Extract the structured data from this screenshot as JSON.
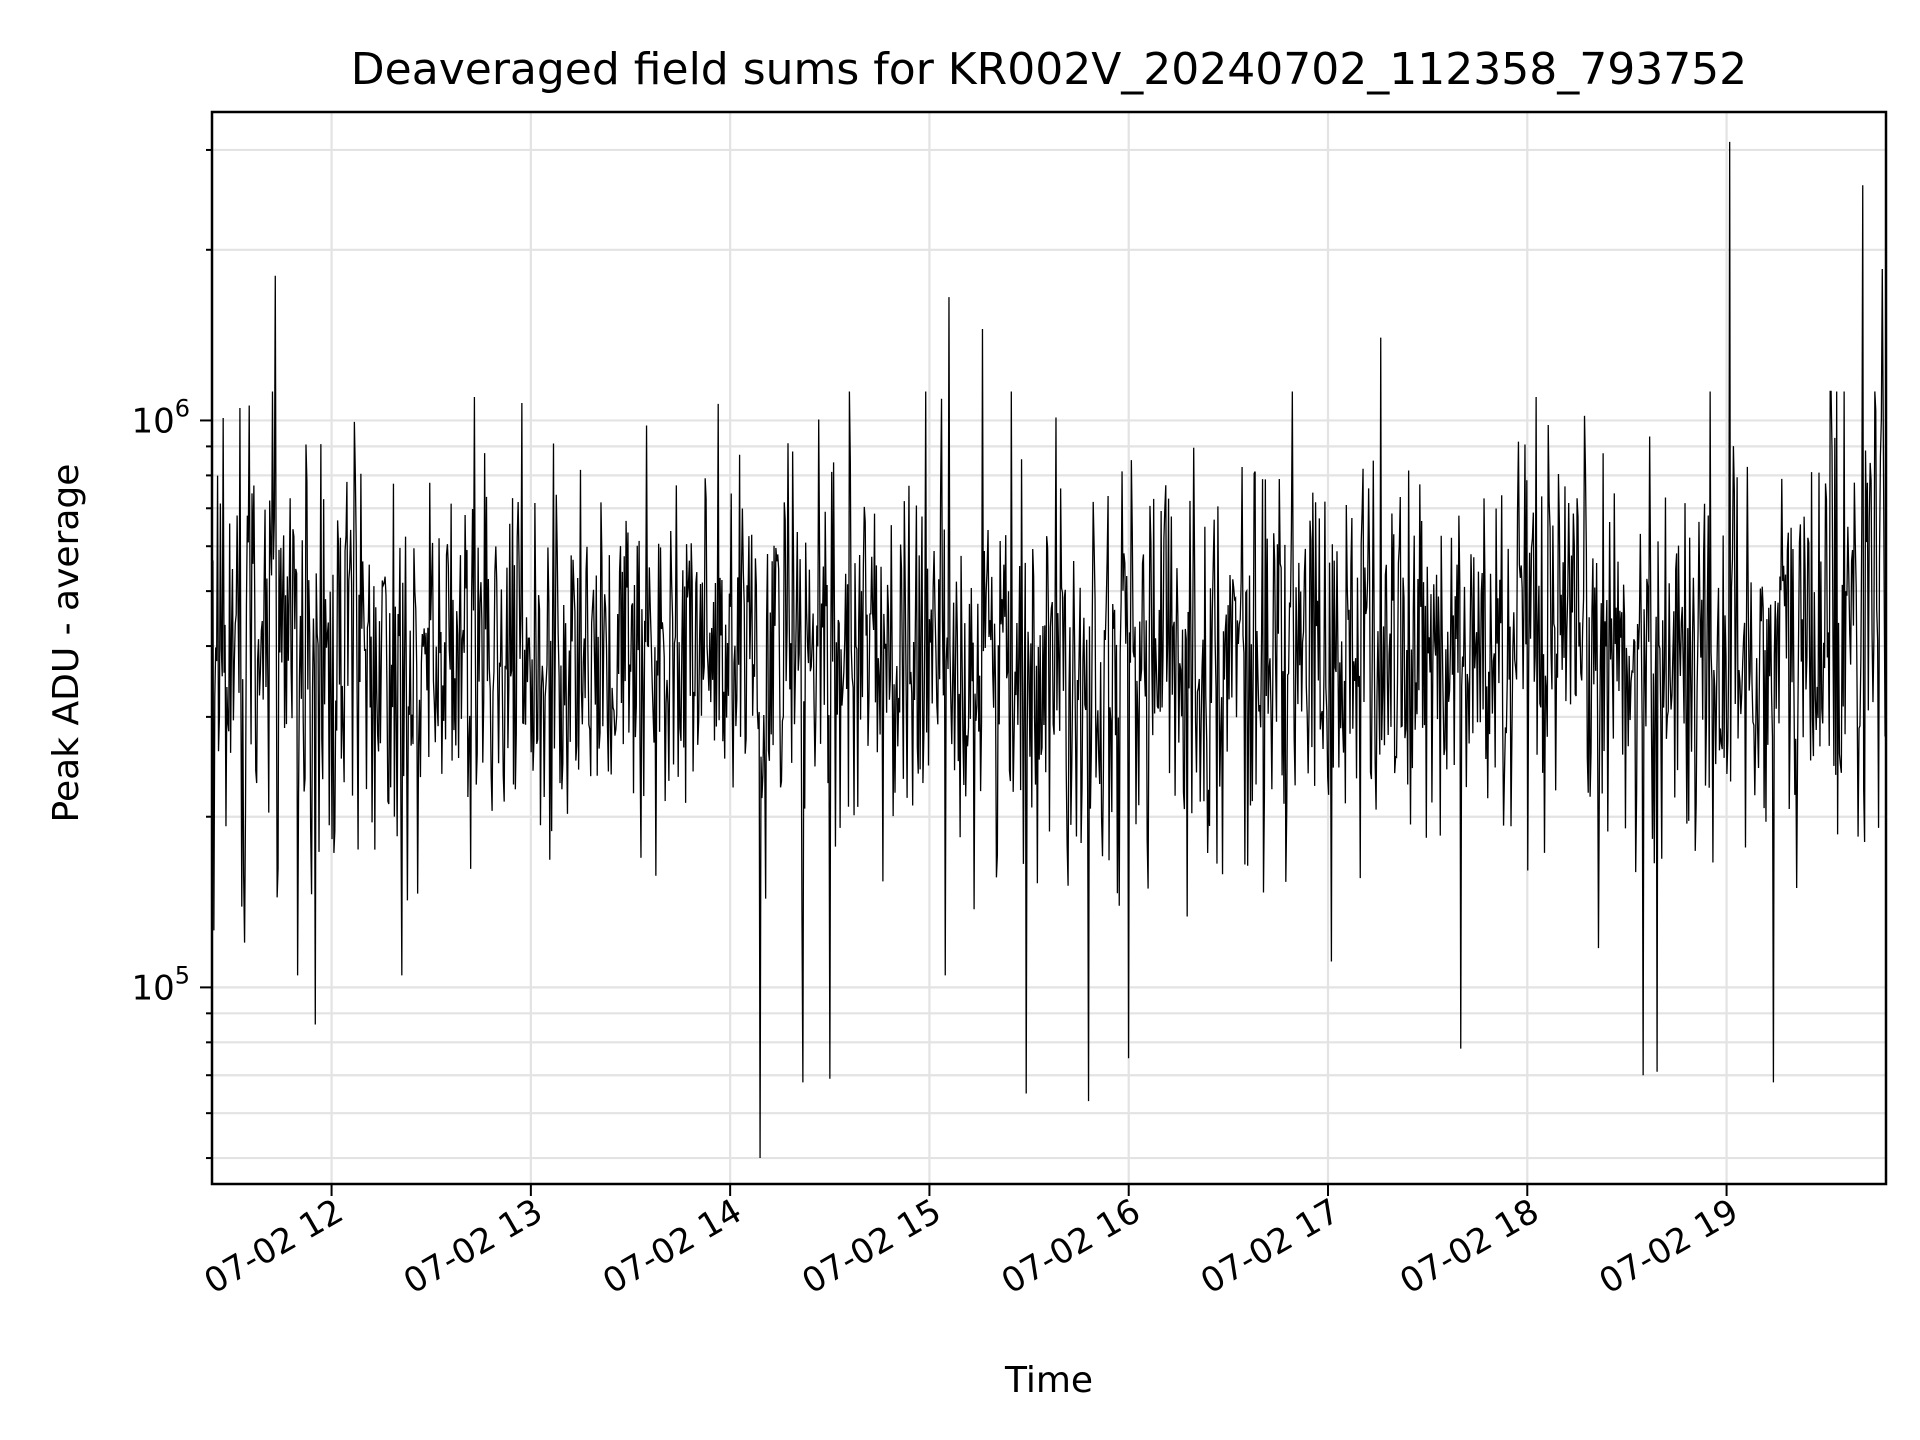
{
  "chart_data": {
    "type": "line",
    "title": "Deaveraged field sums for KR002V_20240702_112358_793752",
    "xlabel": "Time",
    "ylabel": "Peak ADU - average",
    "x_type": "time",
    "x_start": "2024-07-02T11:24:00",
    "x_end": "2024-07-02T19:48:00",
    "xlim": [
      "2024-07-02T11:24:00",
      "2024-07-02T19:48:00"
    ],
    "xticks": [
      {
        "value": "2024-07-02T12:00:00",
        "label": "07-02 12"
      },
      {
        "value": "2024-07-02T13:00:00",
        "label": "07-02 13"
      },
      {
        "value": "2024-07-02T14:00:00",
        "label": "07-02 14"
      },
      {
        "value": "2024-07-02T15:00:00",
        "label": "07-02 15"
      },
      {
        "value": "2024-07-02T16:00:00",
        "label": "07-02 16"
      },
      {
        "value": "2024-07-02T17:00:00",
        "label": "07-02 17"
      },
      {
        "value": "2024-07-02T18:00:00",
        "label": "07-02 18"
      },
      {
        "value": "2024-07-02T19:00:00",
        "label": "07-02 19"
      }
    ],
    "yscale": "log",
    "ylim": [
      45000,
      3500000
    ],
    "yticks": [
      {
        "value": 100000,
        "base": "10",
        "exp": "5"
      },
      {
        "value": 1000000,
        "base": "10",
        "exp": "6"
      }
    ],
    "grid": true,
    "series_color": "#000000",
    "approx_point_count": 1800,
    "typical_range": [
      150000,
      900000
    ],
    "baseline": 380000,
    "notable_points": [
      {
        "x": "2024-07-02T11:43:00",
        "y": 1800000
      },
      {
        "x": "2024-07-02T11:55:00",
        "y": 86000
      },
      {
        "x": "2024-07-02T12:43:00",
        "y": 1100000
      },
      {
        "x": "2024-07-02T14:09:00",
        "y": 50000
      },
      {
        "x": "2024-07-02T14:22:00",
        "y": 68000
      },
      {
        "x": "2024-07-02T14:30:00",
        "y": 69000
      },
      {
        "x": "2024-07-02T15:06:00",
        "y": 1650000
      },
      {
        "x": "2024-07-02T15:16:00",
        "y": 1450000
      },
      {
        "x": "2024-07-02T15:29:00",
        "y": 65000
      },
      {
        "x": "2024-07-02T15:48:00",
        "y": 63000
      },
      {
        "x": "2024-07-02T16:00:00",
        "y": 75000
      },
      {
        "x": "2024-07-02T17:16:00",
        "y": 1400000
      },
      {
        "x": "2024-07-02T17:40:00",
        "y": 78000
      },
      {
        "x": "2024-07-02T18:35:00",
        "y": 70000
      },
      {
        "x": "2024-07-02T18:39:00",
        "y": 71000
      },
      {
        "x": "2024-07-02T19:01:00",
        "y": 3100000
      },
      {
        "x": "2024-07-02T19:14:00",
        "y": 68000
      },
      {
        "x": "2024-07-02T19:41:00",
        "y": 2600000
      },
      {
        "x": "2024-07-02T19:47:00",
        "y": 1850000
      }
    ]
  }
}
